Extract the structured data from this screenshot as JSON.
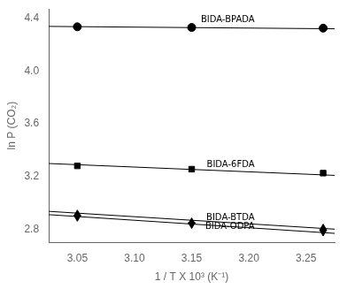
{
  "chart_data": {
    "type": "scatter",
    "xlabel": "1 / T X 10³ (K⁻¹)",
    "ylabel": "ln P (CO₂)",
    "xlim": [
      3.025,
      3.275
    ],
    "ylim": [
      2.7,
      4.47
    ],
    "xticks": [
      3.05,
      {
        "value": 3.1,
        "label": "3.10"
      },
      3.15,
      {
        "value": 3.2,
        "label": "3.20"
      },
      3.25
    ],
    "yticks": [
      2.8,
      3.2,
      3.6,
      {
        "value": 4.0,
        "label": "4.0"
      },
      4.4
    ],
    "grid": false,
    "color": "black",
    "series": [
      {
        "marker": "circle",
        "x": [
          3.05,
          3.15,
          3.265
        ],
        "values": [
          4.335,
          4.33,
          4.325
        ],
        "fit": {
          "x": [
            3.025,
            3.275
          ],
          "values": [
            4.338,
            4.32
          ]
        }
      },
      {
        "marker": "square",
        "x": [
          3.05,
          3.15,
          3.265
        ],
        "values": [
          3.28,
          3.255,
          3.225
        ],
        "fit": {
          "x": [
            3.025,
            3.275
          ],
          "values": [
            3.298,
            3.208
          ]
        }
      },
      {
        "marker": "triangle_up",
        "x": [
          3.05,
          3.15,
          3.265
        ],
        "values": [
          2.915,
          2.855,
          2.808
        ],
        "fit": {
          "x": [
            3.025,
            3.275
          ],
          "values": [
            2.935,
            2.8
          ]
        }
      },
      {
        "marker": "triangle_down",
        "x": [
          3.05,
          3.15,
          3.265
        ],
        "values": [
          2.89,
          2.835,
          2.778
        ],
        "fit": {
          "x": [
            3.025,
            3.275
          ],
          "values": [
            2.91,
            2.768
          ]
        }
      }
    ],
    "annotations": [
      {
        "text": "BIDA-BPADA",
        "x": 3.205,
        "y": 4.362
      },
      {
        "text": "BIDA-6FDA",
        "x": 3.205,
        "y": 3.265
      },
      {
        "text": "BIDA-BTDA",
        "x": 3.205,
        "y": 2.862
      },
      {
        "text": "BIDA-ODPA",
        "x": 3.205,
        "y": 2.792
      }
    ]
  }
}
